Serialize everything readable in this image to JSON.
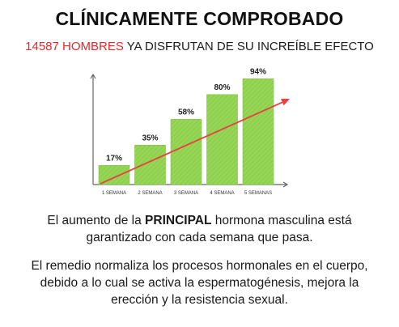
{
  "header": {
    "title": "CLÍNICAMENTE COMPROBADO",
    "count": "14587 HOMBRES",
    "subtitle_rest": " YA DISFRUTAN DE SU INCREÍBLE EFECTO"
  },
  "chart_data": {
    "type": "bar",
    "categories": [
      "1 SEMANA",
      "2 SEMANA",
      "3 SEMANA",
      "4 SEMANA",
      "5 SEMANAS"
    ],
    "values": [
      17,
      35,
      58,
      80,
      94
    ],
    "data_labels": [
      "17%",
      "35%",
      "58%",
      "80%",
      "94%"
    ],
    "ylim": [
      0,
      100
    ],
    "trend_arrow": true,
    "colors": {
      "bar": "#8fd14f",
      "arrow": "#e8413f",
      "axis": "#666666"
    }
  },
  "text": {
    "p1_before": "El aumento de la ",
    "p1_bold": "PRINCIPAL",
    "p1_after": " hormona masculina está garantizado con cada semana que pasa.",
    "p2": "El remedio normaliza los procesos hormonales en el cuerpo, debido a lo cual se activa la espermatogénesis, mejora la erección y la resistencia sexual."
  }
}
